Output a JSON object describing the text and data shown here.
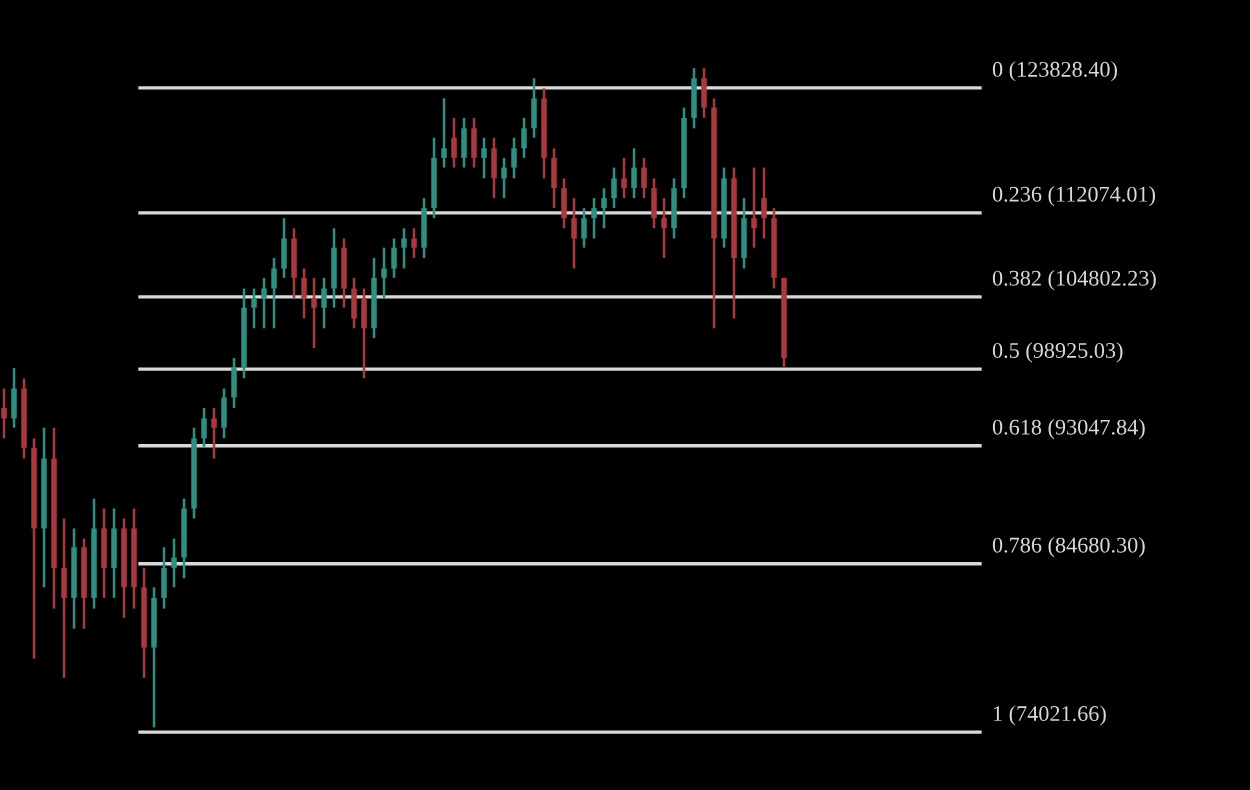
{
  "chart_data": {
    "type": "candlestick",
    "log": true,
    "ylim": [
      70680,
      132840
    ],
    "categories": [
      null,
      null,
      null,
      null,
      null,
      null,
      null,
      null,
      null,
      null,
      null,
      null,
      null,
      null,
      null,
      null,
      null,
      null,
      null,
      null,
      null,
      null,
      null,
      null,
      null,
      null,
      null,
      null,
      null,
      null,
      null,
      null,
      null,
      null,
      null,
      null,
      null,
      null,
      null,
      null,
      null,
      null,
      null,
      null,
      null,
      null,
      null,
      null,
      null,
      null,
      null,
      null,
      null,
      null,
      null,
      null,
      null,
      null,
      null,
      null,
      null,
      null,
      null,
      null,
      null,
      null,
      null,
      null,
      null,
      null,
      null,
      null,
      null,
      null,
      null,
      null,
      null,
      null,
      null
    ],
    "ohlc": [
      [
        95900,
        97400,
        93600,
        95100
      ],
      [
        95100,
        99000,
        94400,
        97400
      ],
      [
        97400,
        98200,
        92100,
        92900
      ],
      [
        92900,
        93600,
        78500,
        87100
      ],
      [
        87100,
        94400,
        83100,
        92100
      ],
      [
        92100,
        94400,
        81700,
        84400
      ],
      [
        84400,
        87800,
        77300,
        82400
      ],
      [
        82400,
        87100,
        80400,
        85800
      ],
      [
        85800,
        86400,
        80400,
        82400
      ],
      [
        82400,
        89200,
        81700,
        87100
      ],
      [
        87100,
        88500,
        82400,
        84400
      ],
      [
        84400,
        88500,
        82400,
        87100
      ],
      [
        87100,
        87800,
        81100,
        83100
      ],
      [
        87100,
        88500,
        81700,
        83100
      ],
      [
        83100,
        84400,
        77300,
        79200
      ],
      [
        79200,
        83100,
        74300,
        82400
      ],
      [
        82400,
        85800,
        81700,
        84400
      ],
      [
        84400,
        86400,
        83100,
        85100
      ],
      [
        85100,
        89200,
        83700,
        88500
      ],
      [
        88500,
        94400,
        87800,
        93600
      ],
      [
        93600,
        95900,
        92900,
        95100
      ],
      [
        95100,
        95900,
        92100,
        94400
      ],
      [
        94400,
        97400,
        93600,
        96700
      ],
      [
        96700,
        99800,
        95900,
        99000
      ],
      [
        99000,
        105500,
        98200,
        103900
      ],
      [
        103900,
        105500,
        102200,
        104700
      ],
      [
        104700,
        106400,
        102200,
        105500
      ],
      [
        105500,
        108100,
        102200,
        107200
      ],
      [
        107200,
        111600,
        106400,
        109800
      ],
      [
        109800,
        110700,
        104700,
        106400
      ],
      [
        106400,
        107200,
        103000,
        104700
      ],
      [
        104700,
        106400,
        100600,
        103900
      ],
      [
        103900,
        106400,
        102200,
        105500
      ],
      [
        105500,
        110700,
        103900,
        109000
      ],
      [
        109000,
        109800,
        103900,
        105500
      ],
      [
        105500,
        106400,
        102200,
        103000
      ],
      [
        104700,
        105500,
        98200,
        102200
      ],
      [
        102200,
        108100,
        101400,
        106400
      ],
      [
        106400,
        109000,
        104700,
        107200
      ],
      [
        107200,
        109800,
        106400,
        109000
      ],
      [
        109000,
        110700,
        107200,
        109800
      ],
      [
        109800,
        110700,
        108100,
        109000
      ],
      [
        109000,
        113400,
        108100,
        112500
      ],
      [
        112500,
        119000,
        111600,
        117100
      ],
      [
        117100,
        122800,
        116200,
        118000
      ],
      [
        119000,
        120900,
        116200,
        117100
      ],
      [
        117100,
        120900,
        116200,
        119900
      ],
      [
        119900,
        120900,
        116200,
        117100
      ],
      [
        117100,
        119000,
        115200,
        118000
      ],
      [
        118000,
        119000,
        113400,
        115200
      ],
      [
        115200,
        117100,
        113400,
        116200
      ],
      [
        116200,
        119000,
        115200,
        118000
      ],
      [
        118000,
        120900,
        117100,
        119900
      ],
      [
        119900,
        124800,
        119000,
        122800
      ],
      [
        122800,
        123800,
        115200,
        117100
      ],
      [
        117100,
        118000,
        112500,
        114300
      ],
      [
        114300,
        115200,
        110700,
        111600
      ],
      [
        111600,
        113400,
        107200,
        109800
      ],
      [
        109800,
        112500,
        109000,
        111600
      ],
      [
        111600,
        113400,
        109800,
        112500
      ],
      [
        112500,
        114300,
        110700,
        113400
      ],
      [
        113400,
        116200,
        112500,
        115200
      ],
      [
        115200,
        117100,
        113400,
        114300
      ],
      [
        114300,
        118000,
        113400,
        116200
      ],
      [
        116200,
        117100,
        113400,
        114300
      ],
      [
        114300,
        115200,
        110700,
        111600
      ],
      [
        111600,
        113400,
        108100,
        110700
      ],
      [
        110700,
        115200,
        109800,
        114300
      ],
      [
        114300,
        121900,
        113400,
        120900
      ],
      [
        120900,
        125800,
        119900,
        124800
      ],
      [
        124800,
        125800,
        120900,
        121900
      ],
      [
        121900,
        122800,
        102200,
        109800
      ],
      [
        109800,
        116200,
        109000,
        115200
      ],
      [
        115200,
        116200,
        103000,
        108100
      ],
      [
        108100,
        113400,
        107200,
        111600
      ],
      [
        111600,
        116200,
        109000,
        110700
      ],
      [
        113400,
        116200,
        109800,
        111600
      ],
      [
        111600,
        112500,
        105500,
        106400
      ],
      [
        106400,
        106400,
        99000,
        99800
      ]
    ],
    "colors": [
      "#a8393f",
      "#2f8f82",
      "#a8393f",
      "#a8393f",
      "#2f8f82",
      "#a8393f",
      "#a8393f",
      "#2f8f82",
      "#a8393f",
      "#2f8f82",
      "#a8393f",
      "#2f8f82",
      "#a8393f",
      "#a8393f",
      "#a8393f",
      "#2f8f82",
      "#2f8f82",
      "#2f8f82",
      "#2f8f82",
      "#2f8f82",
      "#2f8f82",
      "#a8393f",
      "#2f8f82",
      "#2f8f82",
      "#2f8f82",
      "#2f8f82",
      "#2f8f82",
      "#2f8f82",
      "#2f8f82",
      "#a8393f",
      "#a8393f",
      "#a8393f",
      "#2f8f82",
      "#2f8f82",
      "#a8393f",
      "#a8393f",
      "#a8393f",
      "#2f8f82",
      "#2f8f82",
      "#2f8f82",
      "#2f8f82",
      "#a8393f",
      "#2f8f82",
      "#2f8f82",
      "#2f8f82",
      "#a8393f",
      "#2f8f82",
      "#a8393f",
      "#2f8f82",
      "#a8393f",
      "#2f8f82",
      "#2f8f82",
      "#2f8f82",
      "#2f8f82",
      "#a8393f",
      "#a8393f",
      "#a8393f",
      "#a8393f",
      "#2f8f82",
      "#2f8f82",
      "#2f8f82",
      "#2f8f82",
      "#a8393f",
      "#2f8f82",
      "#a8393f",
      "#a8393f",
      "#a8393f",
      "#2f8f82",
      "#2f8f82",
      "#2f8f82",
      "#a8393f",
      "#a8393f",
      "#2f8f82",
      "#a8393f",
      "#2f8f82",
      "#a8393f",
      "#a8393f",
      "#a8393f",
      "#a8393f"
    ],
    "ref_lines": [
      {
        "axis": "y",
        "value": 123828.4,
        "label": "0 (123828.40)",
        "color": "#d9d9d9"
      },
      {
        "axis": "y",
        "value": 112074.01,
        "label": "0.236 (112074.01)",
        "color": "#d9d9d9"
      },
      {
        "axis": "y",
        "value": 104802.23,
        "label": "0.382 (104802.23)",
        "color": "#d9d9d9"
      },
      {
        "axis": "y",
        "value": 98925.03,
        "label": "0.5 (98925.03)",
        "color": "#d9d9d9"
      },
      {
        "axis": "y",
        "value": 93047.84,
        "label": "0.618 (93047.84)",
        "color": "#d9d9d9"
      },
      {
        "axis": "y",
        "value": 84680.3,
        "label": "0.786 (84680.30)",
        "color": "#d9d9d9"
      },
      {
        "axis": "y",
        "value": 74021.66,
        "label": "1 (74021.66)",
        "color": "#d9d9d9"
      }
    ]
  }
}
